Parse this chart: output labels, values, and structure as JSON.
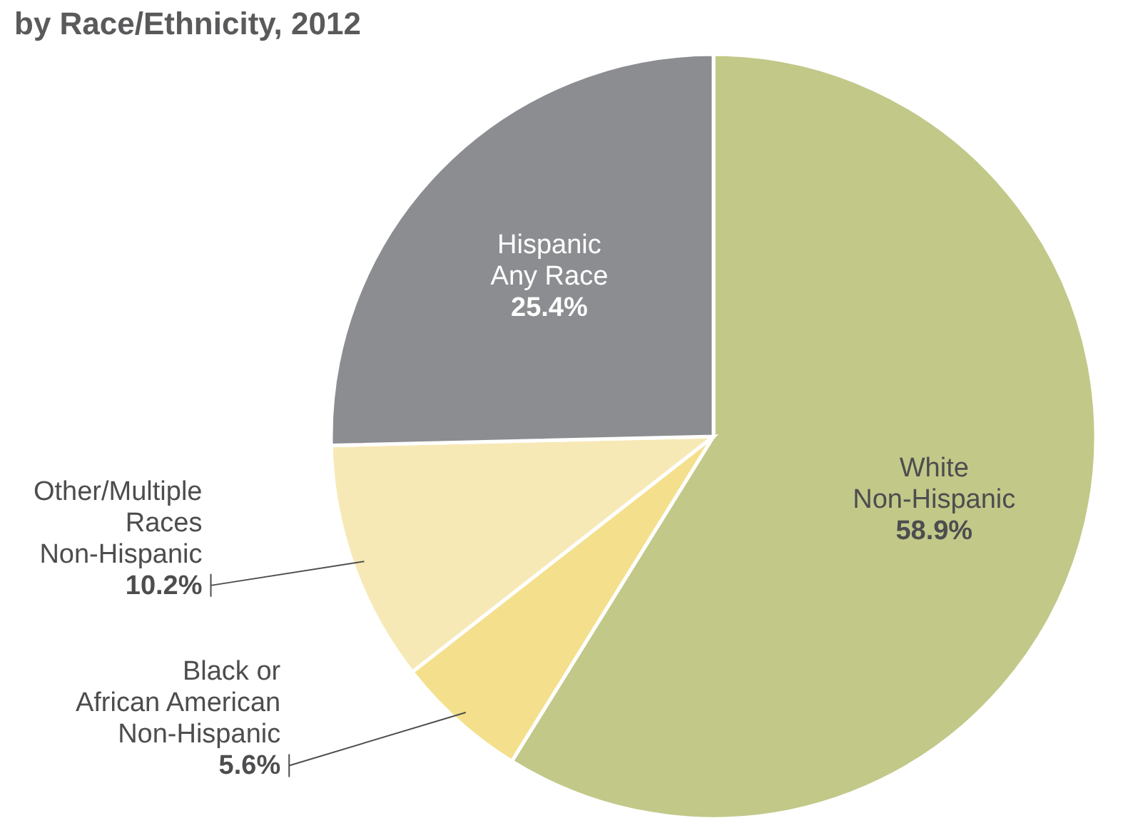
{
  "chart_data": {
    "type": "pie",
    "title": "by Race/Ethnicity, 2012",
    "categories": [
      "White\nNon-Hispanic",
      "Black or\nAfrican American\nNon-Hispanic",
      "Other/Multiple\nRaces\nNon-Hispanic",
      "Hispanic\nAny Race"
    ],
    "values": [
      58.9,
      5.6,
      10.2,
      25.4
    ],
    "value_labels": [
      "58.9%",
      "5.6%",
      "10.2%",
      "25.4%"
    ],
    "colors": [
      "#c2c888",
      "#f4e08c",
      "#f7e9b6",
      "#8c8d91"
    ]
  }
}
